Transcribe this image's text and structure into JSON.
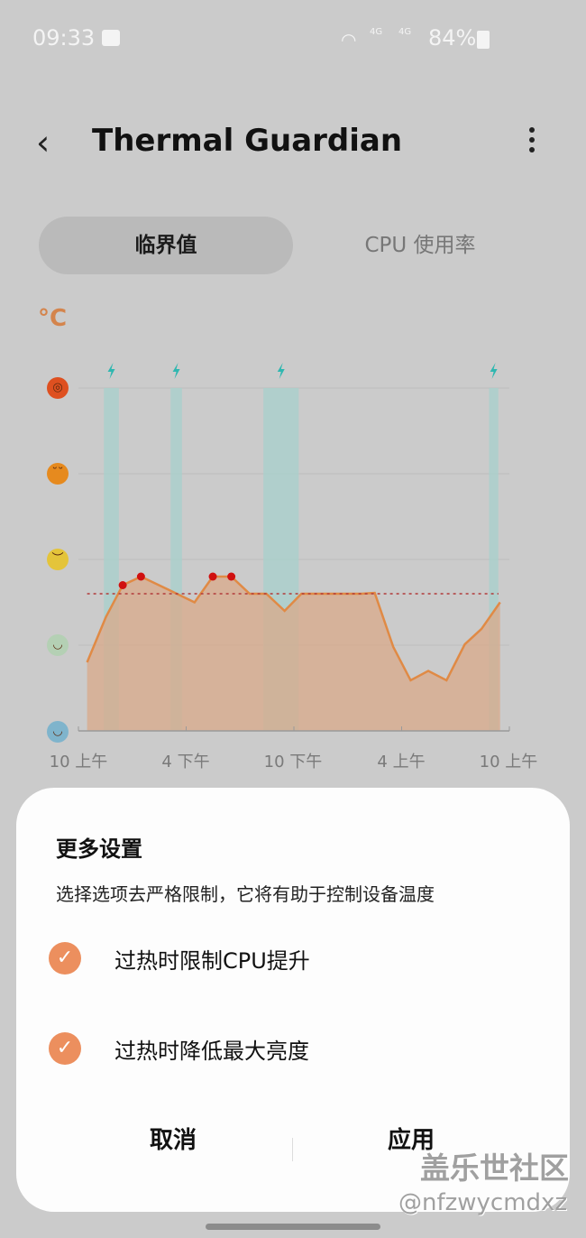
{
  "status_bar": {
    "time": "09:33",
    "battery": "84%",
    "icons": [
      "gallery-icon",
      "wifi-icon",
      "signal-4g-icon",
      "signal-4g-icon",
      "battery-icon"
    ],
    "network_label": "4G"
  },
  "header": {
    "title": "Thermal Guardian",
    "back_icon": "chevron-left-icon",
    "menu_icon": "more-vertical-icon"
  },
  "tabs": [
    {
      "label": "临界值",
      "selected": true
    },
    {
      "label": "CPU 使用率",
      "selected": false
    }
  ],
  "chart_data": {
    "type": "area",
    "ylabel": "°C",
    "y_levels": [
      "very-cold-face",
      "cool-face",
      "neutral-face",
      "hot-face",
      "overheated-face"
    ],
    "ylim": [
      0,
      4
    ],
    "x_ticks": [
      "10 上午",
      "4 下午",
      "10 下午",
      "4 上午",
      "10 上午"
    ],
    "x_tick_times": [
      "10:00",
      "16:00",
      "22:00",
      "04:00",
      "10:00"
    ],
    "threshold": 1.6,
    "grid": true,
    "colors": {
      "line": "#e08a45",
      "fill": "#d9a98a",
      "threshold": "#b23a3a",
      "marker": "#d01010",
      "charging": "#a9cfcc",
      "bolt": "#2fb7b0"
    },
    "points": [
      {
        "time": "10:29",
        "level": 0.8
      },
      {
        "time": "11:32",
        "level": 1.33
      },
      {
        "time": "12:28",
        "level": 1.7,
        "over": true
      },
      {
        "time": "13:29",
        "level": 1.8,
        "over": true
      },
      {
        "time": "14:59",
        "level": 1.65
      },
      {
        "time": "16:28",
        "level": 1.5
      },
      {
        "time": "17:29",
        "level": 1.8,
        "over": true
      },
      {
        "time": "18:31",
        "level": 1.8,
        "over": true
      },
      {
        "time": "19:32",
        "level": 1.6
      },
      {
        "time": "20:28",
        "level": 1.6
      },
      {
        "time": "21:29",
        "level": 1.4
      },
      {
        "time": "22:25",
        "level": 1.6
      },
      {
        "time": "01:46",
        "level": 1.6
      },
      {
        "time": "02:30",
        "level": 1.61
      },
      {
        "time": "03:32",
        "level": 0.98
      },
      {
        "time": "04:30",
        "level": 0.59
      },
      {
        "time": "05:29",
        "level": 0.7
      },
      {
        "time": "06:30",
        "level": 0.59
      },
      {
        "time": "07:31",
        "level": 1.01
      },
      {
        "time": "08:27",
        "level": 1.19
      },
      {
        "time": "09:29",
        "level": 1.5
      }
    ],
    "charging_periods": [
      {
        "start": "11:25",
        "end": "12:15"
      },
      {
        "start": "15:08",
        "end": "15:46"
      },
      {
        "start": "20:18",
        "end": "22:16"
      },
      {
        "start": "08:52",
        "end": "09:23"
      }
    ]
  },
  "sheet": {
    "title": "更多设置",
    "description": "选择选项去严格限制，它将有助于控制设备温度",
    "options": [
      {
        "label": "过热时限制CPU提升",
        "checked": true
      },
      {
        "label": "过热时降低最大亮度",
        "checked": true
      }
    ],
    "cancel": "取消",
    "apply": "应用",
    "accent": "#ec8f5e"
  },
  "watermark": {
    "line1": "盖乐世社区",
    "line2": "@nfzwycmdxz"
  }
}
